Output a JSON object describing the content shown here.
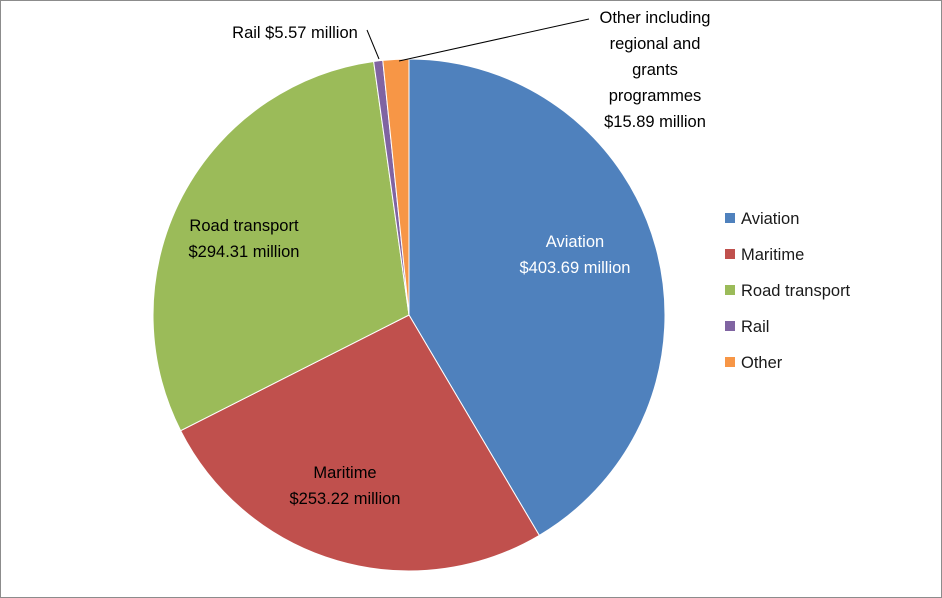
{
  "chart_data": {
    "type": "pie",
    "title": "",
    "slices": [
      {
        "name": "Aviation",
        "value": 403.69,
        "label_lines": [
          "Aviation",
          "$403.69 million"
        ],
        "color": "#4f81bd",
        "label_color": "#ffffff"
      },
      {
        "name": "Maritime",
        "value": 253.22,
        "label_lines": [
          "Maritime",
          "$253.22 million"
        ],
        "color": "#c0504d",
        "label_color": "#000000"
      },
      {
        "name": "Road transport",
        "value": 294.31,
        "label_lines": [
          "Road transport",
          "$294.31 million"
        ],
        "color": "#9bbb59",
        "label_color": "#000000"
      },
      {
        "name": "Rail",
        "value": 5.57,
        "label_lines": [
          "Rail $5.57 million"
        ],
        "color": "#8064a2",
        "label_color": "#000000"
      },
      {
        "name": "Other",
        "value": 15.89,
        "label_lines": [
          "Other including",
          "regional and",
          "grants",
          "programmes",
          "$15.89 million"
        ],
        "color": "#f79646",
        "label_color": "#000000"
      }
    ],
    "legend": {
      "position": "right",
      "entries": [
        "Aviation",
        "Maritime",
        "Road transport",
        "Rail",
        "Other"
      ]
    }
  }
}
